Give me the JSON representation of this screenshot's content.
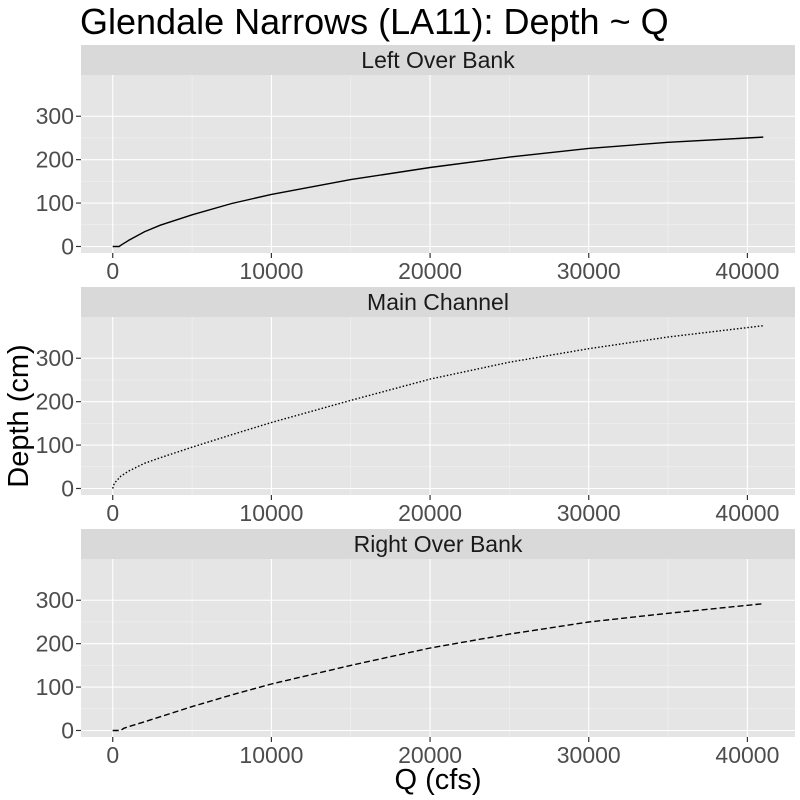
{
  "chart_data": {
    "type": "line",
    "title": "Glendale Narrows (LA11): Depth ~ Q",
    "xlabel": "Q (cfs)",
    "ylabel": "Depth (cm)",
    "xlim": [
      -2000,
      43000
    ],
    "ylim": [
      -15,
      395
    ],
    "xticks": [
      0,
      10000,
      20000,
      30000,
      40000
    ],
    "yticks": [
      0,
      100,
      200,
      300
    ],
    "grid": true,
    "facets": [
      {
        "label": "Left Over Bank",
        "linetype": "solid",
        "x": [
          0,
          400,
          600,
          1000,
          2000,
          3000,
          5000,
          7500,
          10000,
          15000,
          20000,
          25000,
          30000,
          35000,
          41000
        ],
        "y": [
          0,
          0,
          5,
          14,
          34,
          49,
          73,
          99,
          120,
          154,
          182,
          206,
          226,
          240,
          252
        ]
      },
      {
        "label": "Main Channel",
        "linetype": "dotted",
        "x": [
          0,
          100,
          500,
          1000,
          2000,
          3000,
          5000,
          7500,
          10000,
          15000,
          20000,
          25000,
          30000,
          35000,
          41000
        ],
        "y": [
          0,
          12,
          28,
          40,
          58,
          71,
          95,
          124,
          152,
          203,
          252,
          291,
          322,
          349,
          375
        ]
      },
      {
        "label": "Right Over Bank",
        "linetype": "dashed",
        "x": [
          0,
          300,
          500,
          700,
          1000,
          2000,
          5000,
          7500,
          10000,
          15000,
          20000,
          25000,
          30000,
          35000,
          41000
        ],
        "y": [
          0,
          0,
          0,
          5,
          9,
          20,
          55,
          82,
          107,
          150,
          190,
          222,
          250,
          270,
          292
        ]
      }
    ]
  }
}
